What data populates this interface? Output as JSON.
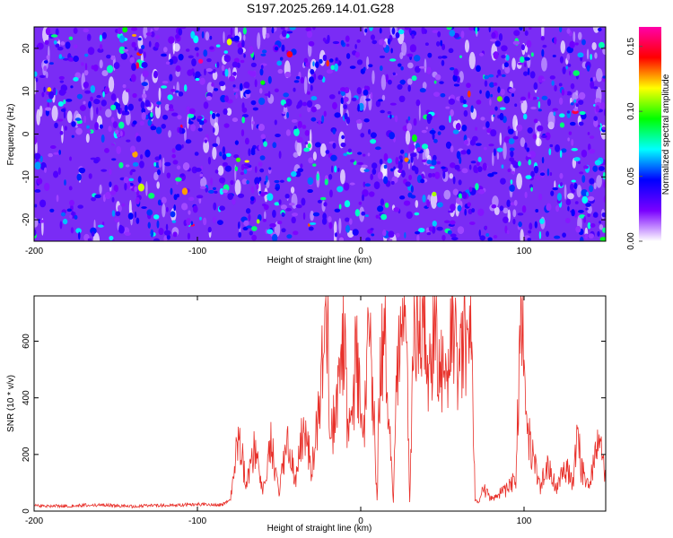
{
  "title": "S197.2025.269.14.01.G28",
  "chart_data": [
    {
      "type": "heatmap",
      "xlabel": "Height of straight line (km)",
      "ylabel": "Frequency (Hz)",
      "xlim": [
        -200,
        150
      ],
      "ylim": [
        -25,
        25
      ],
      "x_ticks": [
        -200,
        -100,
        0,
        100
      ],
      "x_tick_labels": [
        "-200",
        "-100",
        "0",
        "100"
      ],
      "y_ticks": [
        -20,
        -10,
        0,
        10,
        20
      ],
      "y_tick_labels": [
        "-20",
        "-10",
        "0",
        "10",
        "20"
      ],
      "colorbar": {
        "label": "Normalized spectral amplitude",
        "range": [
          0.0,
          0.165
        ],
        "ticks": [
          0.0,
          0.05,
          0.1,
          0.15
        ],
        "tick_labels": [
          "0.00",
          "0.05",
          "0.10",
          "0.15"
        ],
        "colors": [
          "#ffffff",
          "#7a00ff",
          "#0000ff",
          "#00ffff",
          "#00ff00",
          "#ffff00",
          "#ff0000",
          "#ff00aa"
        ]
      },
      "grid": false,
      "description_of_values": "Dense random speckle of amplitude peaks 0.01-0.06 across full range, isolated maxima ~0.16"
    },
    {
      "type": "line",
      "xlabel": "Height of straight line (km)",
      "ylabel": "SNR (10 * v/v)",
      "xlim": [
        -200,
        150
      ],
      "ylim": [
        0,
        760
      ],
      "x_ticks": [
        -200,
        -100,
        0,
        100
      ],
      "x_tick_labels": [
        "-200",
        "-100",
        "0",
        "100"
      ],
      "y_ticks": [
        0,
        200,
        400,
        600
      ],
      "y_tick_labels": [
        "0",
        "200",
        "400",
        "600"
      ],
      "grid": false,
      "series": [
        {
          "name": "SNR",
          "color": "#e8302a",
          "x": [
            -200,
            -180,
            -160,
            -140,
            -120,
            -100,
            -85,
            -80,
            -78,
            -75,
            -70,
            -65,
            -60,
            -55,
            -50,
            -45,
            -40,
            -35,
            -30,
            -25,
            -20,
            -19,
            -15,
            -12,
            -10,
            -8,
            -5,
            -3,
            0,
            2,
            5,
            8,
            10,
            12,
            15,
            20,
            22,
            25,
            28,
            30,
            33,
            35,
            38,
            40,
            43,
            45,
            48,
            50,
            53,
            55,
            58,
            60,
            63,
            65,
            68,
            70,
            72,
            75,
            80,
            85,
            90,
            95,
            98,
            100,
            102,
            105,
            110,
            115,
            120,
            125,
            130,
            133,
            135,
            140,
            145,
            148,
            150
          ],
          "y": [
            20,
            18,
            22,
            17,
            20,
            24,
            22,
            40,
            120,
            280,
            90,
            230,
            70,
            250,
            60,
            260,
            100,
            300,
            150,
            410,
            710,
            220,
            380,
            500,
            640,
            250,
            310,
            560,
            380,
            310,
            620,
            350,
            40,
            560,
            610,
            35,
            470,
            640,
            540,
            40,
            700,
            620,
            740,
            560,
            480,
            760,
            500,
            540,
            430,
            660,
            560,
            420,
            640,
            600,
            660,
            40,
            30,
            80,
            40,
            60,
            80,
            120,
            650,
            700,
            300,
            200,
            80,
            180,
            70,
            160,
            90,
            290,
            150,
            80,
            250,
            180,
            120
          ]
        }
      ]
    }
  ]
}
